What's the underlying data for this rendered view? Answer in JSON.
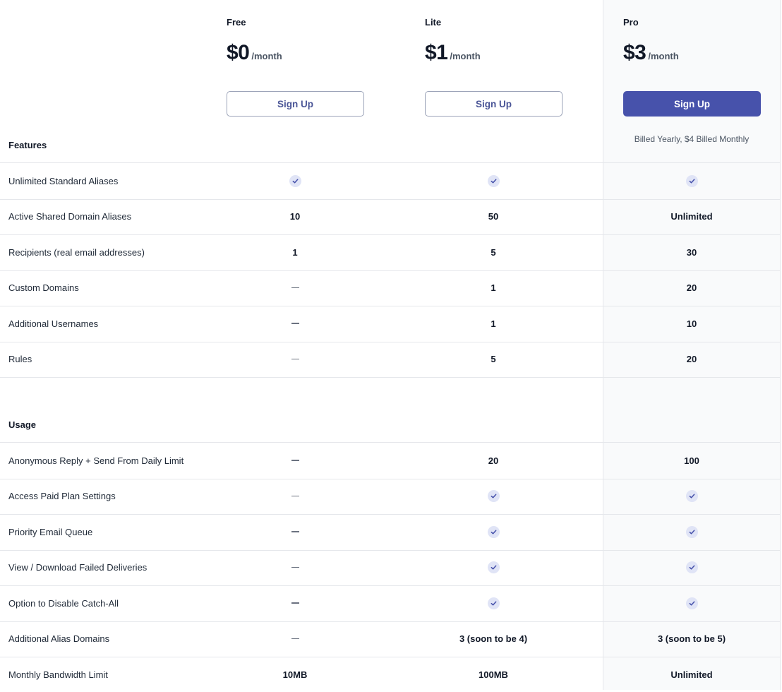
{
  "plans": [
    {
      "name": "Free",
      "price": "$0",
      "period": "/month",
      "button": "Sign Up"
    },
    {
      "name": "Lite",
      "price": "$1",
      "period": "/month",
      "button": "Sign Up"
    },
    {
      "name": "Pro",
      "price": "$3",
      "period": "/month",
      "button": "Sign Up",
      "note": "Billed Yearly, $4 Billed Monthly"
    }
  ],
  "sections": {
    "features": {
      "title": "Features",
      "rows": [
        {
          "label": "Unlimited Standard Aliases",
          "free": "check",
          "lite": "check",
          "pro": "check"
        },
        {
          "label": "Active Shared Domain Aliases",
          "free": "10",
          "lite": "50",
          "pro": "Unlimited"
        },
        {
          "label": "Recipients (real email addresses)",
          "free": "1",
          "lite": "5",
          "pro": "30"
        },
        {
          "label": "Custom Domains",
          "free": "dash",
          "lite": "1",
          "pro": "20"
        },
        {
          "label": "Additional Usernames",
          "free": "dash",
          "lite": "1",
          "pro": "10"
        },
        {
          "label": "Rules",
          "free": "dash",
          "lite": "5",
          "pro": "20"
        }
      ]
    },
    "usage": {
      "title": "Usage",
      "rows": [
        {
          "label": "Anonymous Reply + Send From Daily Limit",
          "free": "dash",
          "lite": "20",
          "pro": "100"
        },
        {
          "label": "Access Paid Plan Settings",
          "free": "dash",
          "lite": "check",
          "pro": "check"
        },
        {
          "label": "Priority Email Queue",
          "free": "dash",
          "lite": "check",
          "pro": "check"
        },
        {
          "label": "View / Download Failed Deliveries",
          "free": "dash",
          "lite": "check",
          "pro": "check"
        },
        {
          "label": "Option to Disable Catch-All",
          "free": "dash",
          "lite": "check",
          "pro": "check"
        },
        {
          "label": "Additional Alias Domains",
          "free": "dash",
          "lite": "3 (soon to be 4)",
          "pro": "3 (soon to be 5)"
        },
        {
          "label": "Monthly Bandwidth Limit",
          "free": "10MB",
          "lite": "100MB",
          "pro": "Unlimited"
        }
      ]
    }
  },
  "icons": {
    "check": "check-circle-icon",
    "dash": "dash-icon"
  },
  "colors": {
    "accent": "#4752ab",
    "check_bg": "#e0e4f6",
    "pro_column_bg": "#f9fafb"
  }
}
